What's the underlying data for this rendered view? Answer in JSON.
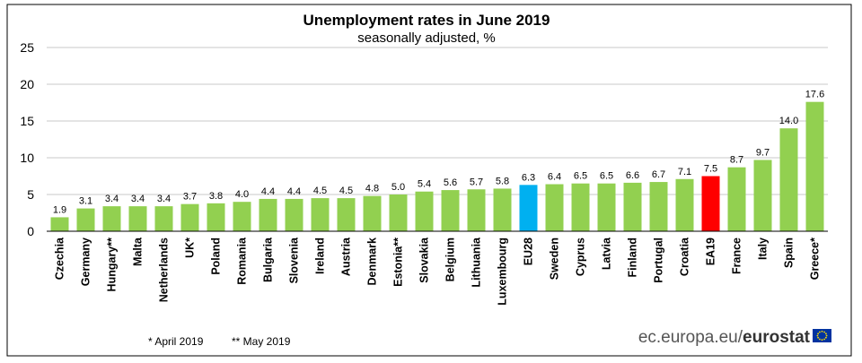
{
  "chart_data": {
    "type": "bar",
    "title": "Unemployment rates in June 2019",
    "subtitle": "seasonally adjusted, %",
    "xlabel": "",
    "ylabel": "",
    "ylim": [
      0,
      25
    ],
    "yticks": [
      "0",
      "5",
      "10",
      "15",
      "20",
      "25"
    ],
    "grid": true,
    "categories": [
      "Czechia",
      "Germany",
      "Hungary**",
      "Malta",
      "Netherlands",
      "UK*",
      "Poland",
      "Romania",
      "Bulgaria",
      "Slovenia",
      "Ireland",
      "Austria",
      "Denmark",
      "Estonia**",
      "Slovakia",
      "Belgium",
      "Lithuania",
      "Luxembourg",
      "EU28",
      "Sweden",
      "Cyprus",
      "Latvia",
      "Finland",
      "Portugal",
      "Croatia",
      "EA19",
      "France",
      "Italy",
      "Spain",
      "Greece*"
    ],
    "values": [
      1.9,
      3.1,
      3.4,
      3.4,
      3.4,
      3.7,
      3.8,
      4.0,
      4.4,
      4.4,
      4.5,
      4.5,
      4.8,
      5.0,
      5.4,
      5.6,
      5.7,
      5.8,
      6.3,
      6.4,
      6.5,
      6.5,
      6.6,
      6.7,
      7.1,
      7.5,
      8.7,
      9.7,
      14.0,
      17.6
    ],
    "value_labels": [
      "1.9",
      "3.1",
      "3.4",
      "3.4",
      "3.4",
      "3.7",
      "3.8",
      "4.0",
      "4.4",
      "4.4",
      "4.5",
      "4.5",
      "4.8",
      "5.0",
      "5.4",
      "5.6",
      "5.7",
      "5.8",
      "6.3",
      "6.4",
      "6.5",
      "6.5",
      "6.6",
      "6.7",
      "7.1",
      "7.5",
      "8.7",
      "9.7",
      "14.0",
      "17.6"
    ],
    "colors": {
      "default": "#92D050",
      "EU28": "#00B0F0",
      "EA19": "#FF0000"
    }
  },
  "footnotes": {
    "note1": "* April 2019",
    "note2": "** May 2019"
  },
  "source": {
    "prefix": "ec.europa.eu/",
    "brand": "eurostat"
  },
  "logo_icon": "eu-flag-icon"
}
